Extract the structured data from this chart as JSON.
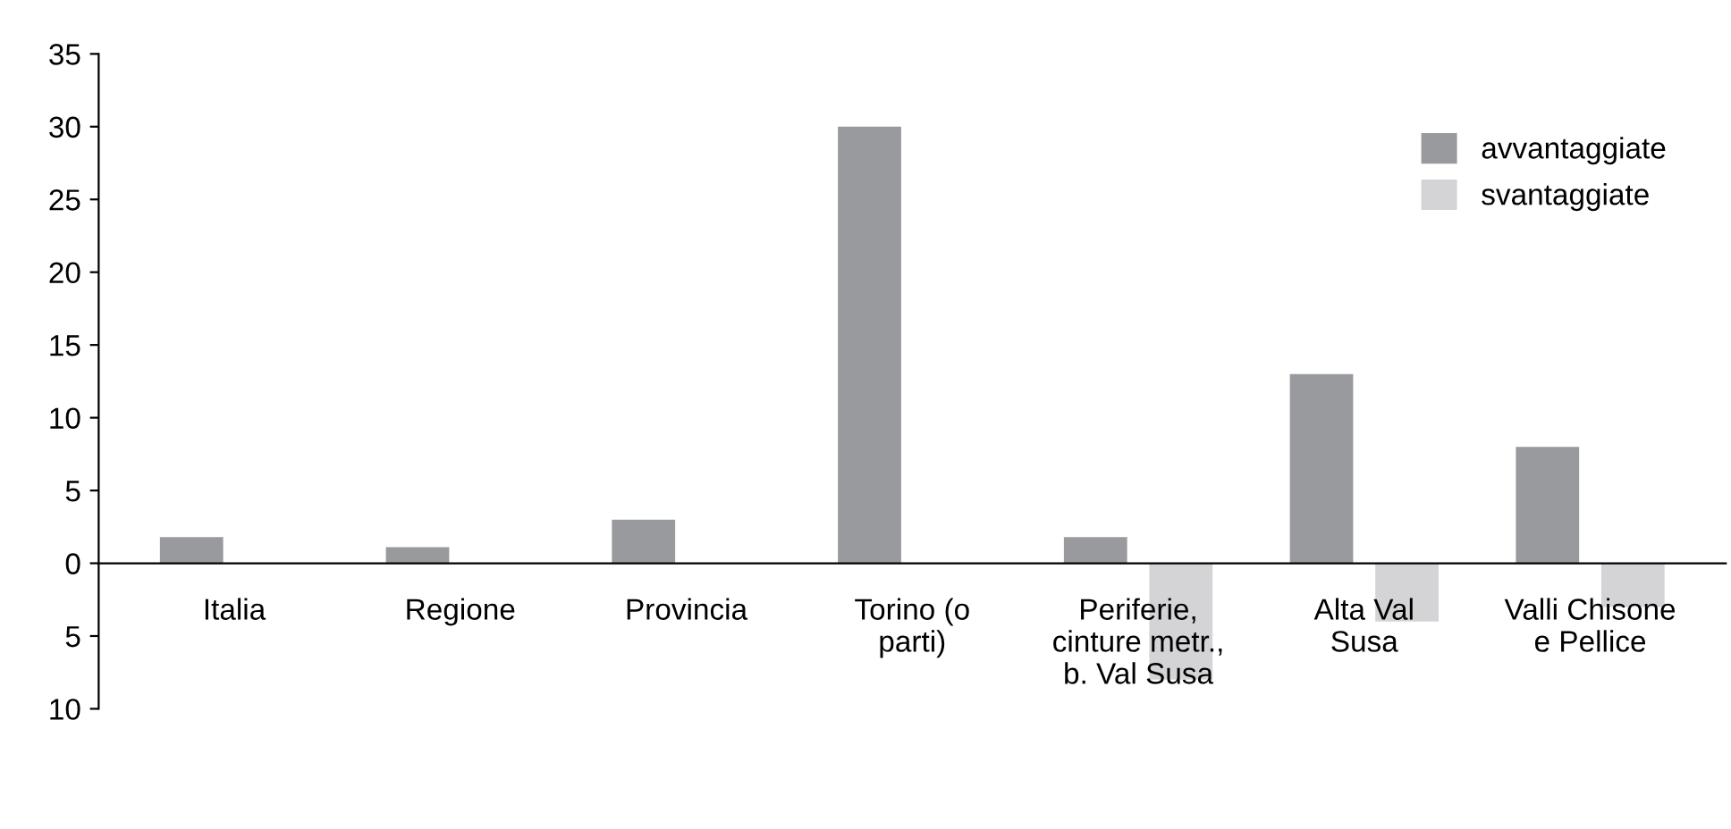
{
  "chart_data": {
    "type": "bar",
    "categories": [
      "Italia",
      "Regione",
      "Provincia",
      "Torino (o\nparti)",
      "Periferie,\ncinture metr.,\nb. Val Susa",
      "Alta Val\nSusa",
      "Valli Chisone\ne Pellice"
    ],
    "series": [
      {
        "name": "avvantaggiate",
        "color": "#999a9e",
        "values": [
          1.8,
          1.1,
          3,
          30,
          1.8,
          13,
          8
        ]
      },
      {
        "name": "svantaggiate",
        "color": "#d4d4d6",
        "values": [
          null,
          null,
          null,
          null,
          -8,
          -4,
          -3
        ]
      }
    ],
    "ylim": [
      -10,
      35
    ],
    "yticks": [
      {
        "value": -10,
        "label": "10"
      },
      {
        "value": -5,
        "label": "5"
      },
      0,
      5,
      10,
      15,
      20,
      25,
      30,
      35
    ],
    "grid": false,
    "legend": "top right"
  }
}
